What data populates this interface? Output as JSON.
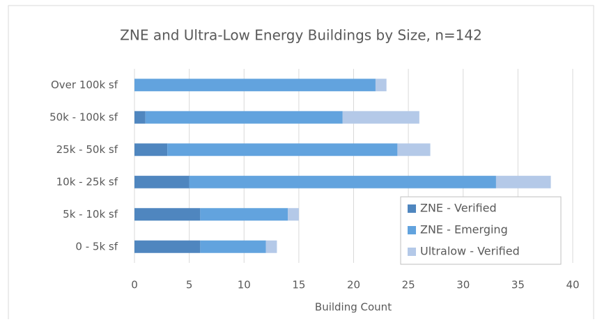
{
  "chart_data": {
    "type": "bar",
    "orientation": "horizontal",
    "stacked": true,
    "title": "ZNE and Ultra-Low Energy Buildings by Size, n=142",
    "x_label": "Building Count",
    "categories": [
      "Over 100k sf",
      "50k - 100k sf",
      "25k - 50k sf",
      "10k - 25k sf",
      "5k - 10k sf",
      "0 - 5k sf"
    ],
    "series": [
      {
        "name": "ZNE - Verified",
        "color": "#4f86bf",
        "values": [
          0,
          1,
          3,
          5,
          6,
          6
        ]
      },
      {
        "name": "ZNE - Emerging",
        "color": "#62a3de",
        "values": [
          22,
          18,
          21,
          28,
          8,
          6
        ]
      },
      {
        "name": "Ultralow - Verified",
        "color": "#b4c9e8",
        "values": [
          1,
          7,
          3,
          5,
          1,
          1
        ]
      }
    ],
    "xlim": [
      0,
      40
    ],
    "xticks": [
      0,
      5,
      10,
      15,
      20,
      25,
      30,
      35,
      40
    ],
    "grid": true
  }
}
